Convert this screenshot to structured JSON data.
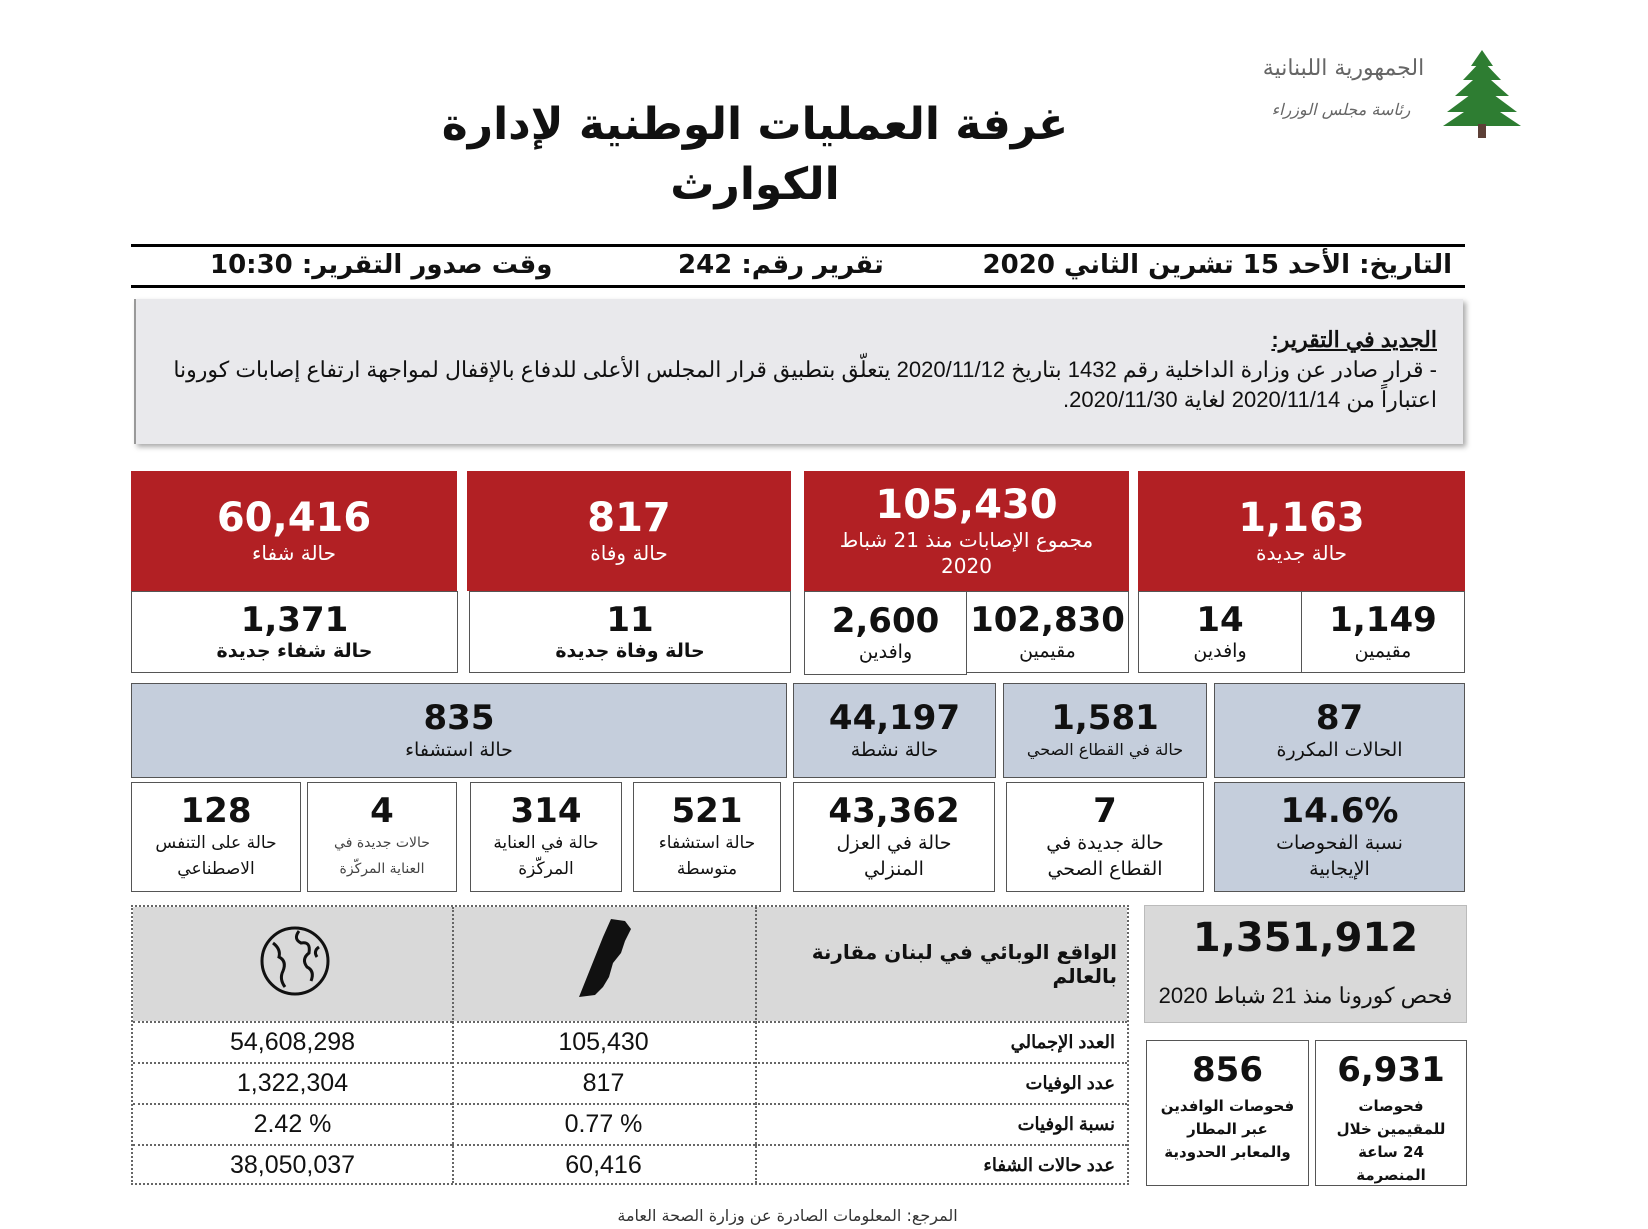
{
  "logo": {
    "text_line1": "الجمهورية اللبنانية",
    "text_line2": "رئاسة مجلس الوزراء"
  },
  "title": {
    "line1": "غرفة العمليات الوطنية لإدارة",
    "line2": "الكوارث"
  },
  "header": {
    "date": "التاريخ: الأحد 15 تشرين الثاني 2020",
    "report_no": "تقرير رقم: 242",
    "time": "وقت صدور التقرير: 10:30"
  },
  "news": {
    "heading": "الجديد في التقرير:",
    "body": "- قرار صادر عن وزارة الداخلية رقم 1432 بتاريخ 2020/11/12 يتعلّق بتطبيق قرار المجلس الأعلى للدفاع بالإقفال لمواجهة ارتفاع إصابات كورونا اعتباراً من 2020/11/14 لغاية 2020/11/30."
  },
  "red_cards": [
    {
      "value": "1,163",
      "label": "حالة جديدة"
    },
    {
      "value": "105,430",
      "label": "مجموع الإصابات منذ 21 شباط 2020"
    },
    {
      "value": "817",
      "label": "حالة وفاة"
    },
    {
      "value": "60,416",
      "label": "حالة شفاء"
    }
  ],
  "white_cards": [
    {
      "value": "1,149",
      "label": "مقيمين"
    },
    {
      "value": "14",
      "label": "وافدين"
    },
    {
      "value": "102,830",
      "label": "مقيمين"
    },
    {
      "value": "2,600",
      "label": "وافدين"
    },
    {
      "value": "11",
      "label": "حالة  وفاة جديدة"
    },
    {
      "value": "1,371",
      "label": "حالة شفاء جديدة"
    }
  ],
  "blue_cards": [
    {
      "value": "87",
      "label": "الحالات المكررة"
    },
    {
      "value": "1,581",
      "label": "حالة في القطاع الصحي"
    },
    {
      "value": "44,197",
      "label": "حالة نشطة"
    },
    {
      "value": "835",
      "label": "حالة استشفاء"
    }
  ],
  "small_cards": [
    {
      "value": "14.6%",
      "label": "نسبة الفحوصات الإيجابية"
    },
    {
      "value": "7",
      "label": "حالة جديدة في القطاع الصحي"
    },
    {
      "value": "43,362",
      "label": "حالة في العزل المنزلي"
    },
    {
      "value": "521",
      "label": "حالة استشفاء متوسطة"
    },
    {
      "value": "314",
      "label": "حالة في العناية المركّزة"
    },
    {
      "value": "4",
      "label": "حالات جديدة في العناية المركّزة"
    },
    {
      "value": "128",
      "label": "حالة على التنفس الاصطناعي"
    }
  ],
  "comparison": {
    "title": "الواقع الوبائي في لبنان مقارنة بالعالم",
    "rows": [
      {
        "label": "العدد الإجمالي",
        "lebanon": "105,430",
        "world": "54,608,298"
      },
      {
        "label": "عدد الوفيات",
        "lebanon": "817",
        "world": "1,322,304"
      },
      {
        "label": "نسبة الوفيات",
        "lebanon": "0.77 %",
        "world": "2.42 %"
      },
      {
        "label": "عدد حالات الشفاء",
        "lebanon": "60,416",
        "world": "38,050,037"
      }
    ]
  },
  "tests": {
    "total": "1,351,912",
    "total_label": "فحص كورونا منذ 21 شباط 2020",
    "residents": "6,931",
    "residents_label": "فحوصات للمقيمين خلال 24 ساعة المنصرمة",
    "arrivals": "856",
    "arrivals_label": "فحوصات الوافدين عبر المطار والمعابر الحدودية"
  },
  "footer": "المرجع: المعلومات الصادرة عن وزارة الصحة العامة"
}
